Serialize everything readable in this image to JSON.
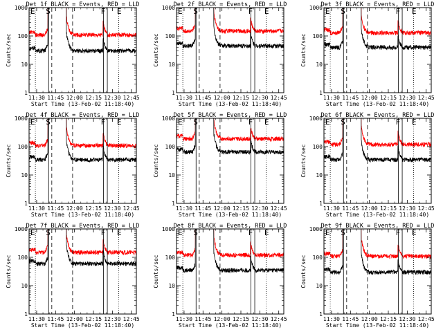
{
  "chart_data": {
    "type": "line",
    "yscale": "log",
    "ylim": [
      1,
      1000
    ],
    "yticks": [
      1,
      10,
      100,
      1000
    ],
    "ytick_labels": [
      "1",
      "10",
      "100",
      "1000"
    ],
    "xlim_minutes": [
      -6,
      79
    ],
    "xtick_minutes": [
      0,
      15,
      30,
      45,
      60,
      75
    ],
    "xtick_labels": [
      "11:30",
      "11:45",
      "12:00",
      "12:15",
      "12:30",
      "12:45"
    ],
    "xlabel": "Start Time (13-Feb-02 11:18:40)",
    "ylabel": "Counts/sec",
    "series_colors": {
      "events": "#000000",
      "lld": "#ff0000"
    },
    "marker_labels": {
      "E": "E",
      "S": "S",
      "F": "F"
    },
    "marker_minutes": {
      "E_start": -6,
      "dotted_1": -1,
      "S": 9.5,
      "F1": 53,
      "F2": 56,
      "E_end": 62.5,
      "dotted_2": 65
    },
    "dashed_minutes": [
      12,
      28.5
    ],
    "detectors": [
      {
        "title": "Det 1f BLACK = Events, RED = LLD",
        "events_level": 30,
        "lld_level": 110,
        "dip_min": 18,
        "dip_depth": 3
      },
      {
        "title": "Det 2f BLACK = Events, RED = LLD",
        "events_level": 45,
        "lld_level": 150,
        "dip_min": null,
        "dip_depth": null
      },
      {
        "title": "Det 3f BLACK = Events, RED = LLD",
        "events_level": 40,
        "lld_level": 130,
        "dip_min": 21,
        "dip_depth": 2
      },
      {
        "title": "Det 4f BLACK = Events, RED = LLD",
        "events_level": 35,
        "lld_level": 110,
        "dip_min": null,
        "dip_depth": null
      },
      {
        "title": "Det 5f BLACK = Events, RED = LLD",
        "events_level": 65,
        "lld_level": 190,
        "dip_min": 17,
        "dip_depth": 1
      },
      {
        "title": "Det 6f BLACK = Events, RED = LLD",
        "events_level": 35,
        "lld_level": 120,
        "dip_min": null,
        "dip_depth": null
      },
      {
        "title": "Det 7f BLACK = Events, RED = LLD",
        "events_level": 60,
        "lld_level": 150,
        "dip_min": null,
        "dip_depth": null
      },
      {
        "title": "Det 8f BLACK = Events, RED = LLD",
        "events_level": 35,
        "lld_level": 120,
        "dip_min": null,
        "dip_depth": null
      },
      {
        "title": "Det 9f BLACK = Events, RED = LLD",
        "events_level": 30,
        "lld_level": 110,
        "dip_min": null,
        "dip_depth": null
      }
    ]
  }
}
